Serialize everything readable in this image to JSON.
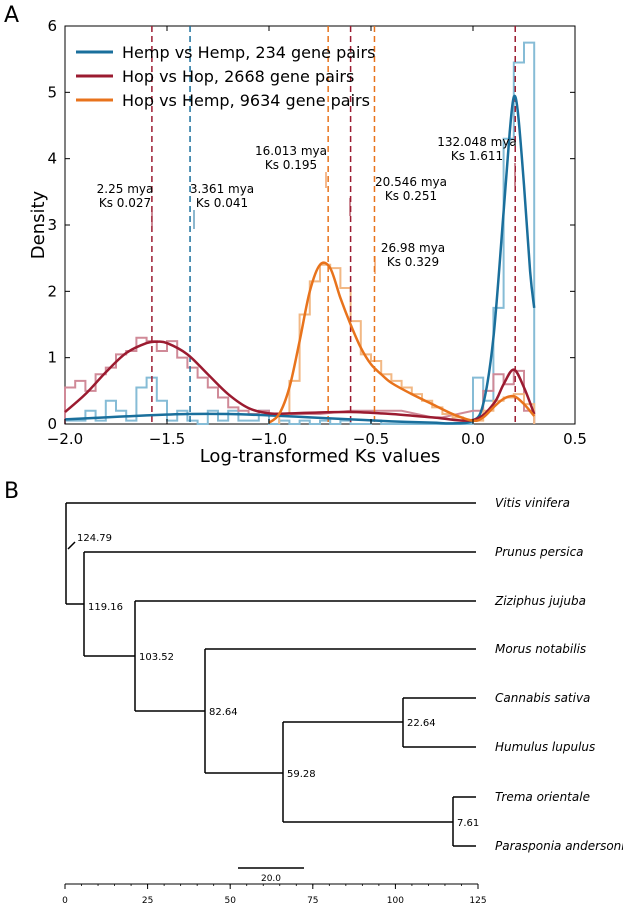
{
  "panel_a_label": "A",
  "panel_b_label": "B",
  "chart_data": [
    {
      "type": "line",
      "xlabel": "Log-transformed Ks values",
      "ylabel": "Density",
      "xlim": [
        -2.0,
        0.5
      ],
      "ylim": [
        0,
        6
      ],
      "x_ticks": [
        -2.0,
        -1.5,
        -1.0,
        -0.5,
        0.0,
        0.5
      ],
      "x_tick_labels": [
        "−2.0",
        "−1.5",
        "−1.0",
        "−0.5",
        "0.0",
        "0.5"
      ],
      "y_ticks": [
        0,
        1,
        2,
        3,
        4,
        5,
        6
      ],
      "y_tick_labels": [
        "0",
        "1",
        "2",
        "3",
        "4",
        "5",
        "6"
      ],
      "legend_position": "top-left",
      "series": [
        {
          "name": "Hemp vs Hemp, 234 gene pairs",
          "color": "#1a6f9c",
          "hist_color": "#86bcd6",
          "curve_x": [
            -2.0,
            -1.8,
            -1.6,
            -1.4,
            -1.2,
            -1.0,
            -0.8,
            -0.6,
            -0.4,
            -0.2,
            -0.1,
            0.0,
            0.05,
            0.1,
            0.15,
            0.18,
            0.2,
            0.22,
            0.25,
            0.28,
            0.3
          ],
          "curve_y": [
            0.07,
            0.1,
            0.13,
            0.15,
            0.15,
            0.13,
            0.1,
            0.07,
            0.04,
            0.02,
            0.01,
            0.05,
            0.3,
            1.3,
            3.2,
            4.4,
            4.93,
            4.7,
            3.6,
            2.3,
            1.75
          ],
          "hist_x": [
            -2.0,
            -1.95,
            -1.9,
            -1.85,
            -1.8,
            -1.75,
            -1.7,
            -1.65,
            -1.6,
            -1.55,
            -1.5,
            -1.45,
            -1.4,
            -1.35,
            -1.3,
            -1.25,
            -1.2,
            -1.15,
            -1.1,
            -1.05,
            -1.0,
            -0.95,
            -0.9,
            -0.85,
            -0.8,
            -0.75,
            -0.7,
            -0.65,
            -0.6,
            -0.55,
            -0.5,
            -0.45,
            -0.4,
            -0.35,
            -0.3,
            -0.25,
            -0.2,
            -0.15,
            -0.1,
            -0.05,
            0.0,
            0.05,
            0.1,
            0.15,
            0.2,
            0.25
          ],
          "hist_y": [
            0.05,
            0.05,
            0.2,
            0.05,
            0.35,
            0.2,
            0.05,
            0.55,
            0.7,
            0.35,
            0.05,
            0.2,
            0.05,
            0.0,
            0.2,
            0.05,
            0.2,
            0.05,
            0.05,
            0.2,
            0.0,
            0.05,
            0.0,
            0.05,
            0.0,
            0.05,
            0.0,
            0.05,
            0.0,
            0.0,
            0.05,
            0.0,
            0.0,
            0.0,
            0.0,
            0.0,
            0.0,
            0.0,
            0.0,
            0.0,
            0.7,
            0.35,
            1.75,
            4.3,
            5.45,
            5.75
          ]
        },
        {
          "name": "Hop vs Hop, 2668 gene pairs",
          "color": "#9b1b30",
          "hist_color": "#d08a98",
          "curve_x": [
            -2.0,
            -1.9,
            -1.8,
            -1.7,
            -1.6,
            -1.55,
            -1.5,
            -1.4,
            -1.3,
            -1.2,
            -1.1,
            -1.0,
            -0.9,
            -0.8,
            -0.6,
            -0.4,
            -0.2,
            0.0,
            0.1,
            0.15,
            0.2,
            0.25,
            0.3
          ],
          "curve_y": [
            0.18,
            0.45,
            0.78,
            1.07,
            1.22,
            1.24,
            1.22,
            1.05,
            0.75,
            0.45,
            0.24,
            0.16,
            0.16,
            0.17,
            0.18,
            0.15,
            0.1,
            0.06,
            0.3,
            0.6,
            0.82,
            0.55,
            0.15
          ],
          "hist_x": [
            -2.0,
            -1.95,
            -1.9,
            -1.85,
            -1.8,
            -1.75,
            -1.7,
            -1.65,
            -1.6,
            -1.55,
            -1.5,
            -1.45,
            -1.4,
            -1.35,
            -1.3,
            -1.25,
            -1.2,
            -1.15,
            -1.1,
            -1.05,
            -1.0,
            -0.8,
            -0.6,
            -0.4,
            -0.2,
            0.0,
            0.05,
            0.1,
            0.15,
            0.2,
            0.25
          ],
          "hist_y": [
            0.55,
            0.65,
            0.5,
            0.75,
            0.85,
            1.05,
            1.1,
            1.3,
            1.25,
            1.1,
            1.25,
            1.0,
            0.85,
            0.7,
            0.55,
            0.4,
            0.25,
            0.2,
            0.15,
            0.2,
            0.15,
            0.15,
            0.2,
            0.2,
            0.1,
            0.2,
            0.5,
            0.75,
            0.6,
            0.8,
            0.2
          ]
        },
        {
          "name": "Hop vs Hemp, 9634 gene pairs",
          "color": "#e8731c",
          "hist_color": "#f2b884",
          "curve_x": [
            -1.0,
            -0.95,
            -0.9,
            -0.85,
            -0.8,
            -0.75,
            -0.7,
            -0.65,
            -0.6,
            -0.55,
            -0.5,
            -0.45,
            -0.4,
            -0.3,
            -0.2,
            -0.1,
            0.0,
            0.05,
            0.1,
            0.15,
            0.2,
            0.25,
            0.3
          ],
          "curve_y": [
            0.02,
            0.15,
            0.55,
            1.25,
            2.0,
            2.4,
            2.35,
            1.9,
            1.5,
            1.15,
            0.9,
            0.75,
            0.62,
            0.45,
            0.3,
            0.15,
            0.05,
            0.1,
            0.25,
            0.38,
            0.42,
            0.3,
            0.12
          ],
          "hist_x": [
            -0.95,
            -0.9,
            -0.85,
            -0.8,
            -0.75,
            -0.7,
            -0.65,
            -0.6,
            -0.55,
            -0.5,
            -0.45,
            -0.4,
            -0.35,
            -0.3,
            -0.25,
            -0.2,
            -0.15,
            -0.1,
            -0.05,
            0.0,
            0.05,
            0.1,
            0.15,
            0.2,
            0.25
          ],
          "hist_y": [
            0.15,
            0.65,
            1.65,
            2.15,
            2.4,
            2.35,
            2.05,
            1.55,
            1.05,
            0.95,
            0.75,
            0.65,
            0.55,
            0.45,
            0.35,
            0.25,
            0.15,
            0.1,
            0.05,
            0.05,
            0.2,
            0.35,
            0.4,
            0.45,
            0.3
          ]
        }
      ],
      "vlines": [
        {
          "x": -1.574,
          "color": "#9b1b30"
        },
        {
          "x": -1.387,
          "color": "#1a6f9c"
        },
        {
          "x": -0.71,
          "color": "#e8731c"
        },
        {
          "x": -0.6,
          "color": "#9b1b30"
        },
        {
          "x": -0.483,
          "color": "#e8731c"
        },
        {
          "x": 0.207,
          "color": "#9b1b30"
        }
      ],
      "annotations": [
        {
          "line1": "2.25 mya",
          "line2": "Ks 0.027"
        },
        {
          "line1": "3.361 mya",
          "line2": "Ks 0.041"
        },
        {
          "line1": "16.013 mya",
          "line2": "Ks 0.195"
        },
        {
          "line1": "20.546 mya",
          "line2": "Ks 0.251"
        },
        {
          "line1": "26.98 mya",
          "line2": "Ks 0.329"
        },
        {
          "line1": "132.048 mya",
          "line2": "Ks 1.611"
        }
      ]
    },
    {
      "type": "tree",
      "species": [
        "Vitis vinifera",
        "Prunus persica",
        "Ziziphus jujuba",
        "Morus notabilis",
        "Cannabis sativa",
        "Humulus lupulus",
        "Trema orientale",
        "Parasponia andersonii"
      ],
      "node_ages": [
        "124.79",
        "119.16",
        "103.52",
        "82.64",
        "59.28",
        "22.64",
        "7.61"
      ],
      "scale_bar_label": "20.0",
      "axis_ticks": [
        "0",
        "25",
        "50",
        "75",
        "100",
        "125"
      ]
    }
  ]
}
